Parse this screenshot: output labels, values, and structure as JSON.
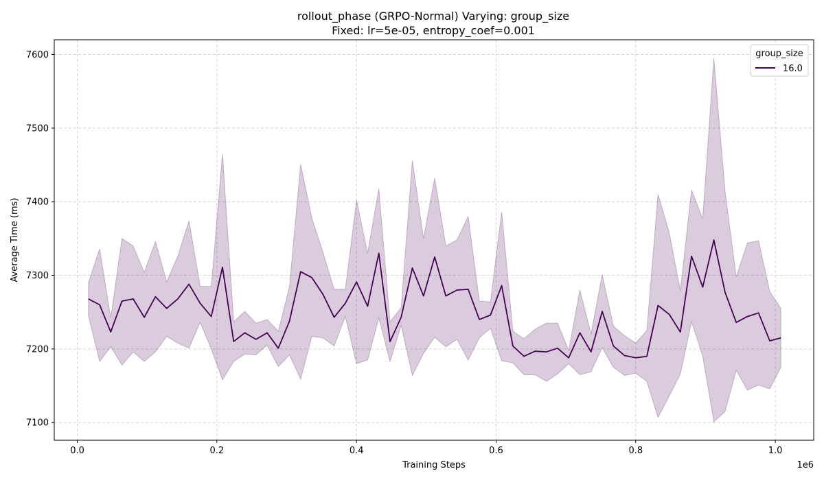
{
  "chart_data": {
    "type": "line",
    "title_line1": "rollout_phase (GRPO-Normal) Varying: group_size",
    "title_line2": "Fixed: lr=5e-05, entropy_coef=0.001",
    "xlabel": "Training Steps",
    "ylabel": "Average Time (ms)",
    "x_offset_label": "1e6",
    "xlim": [
      -0.033,
      1.055
    ],
    "ylim": [
      7076,
      7620
    ],
    "x_ticks": [
      0.0,
      0.2,
      0.4,
      0.6,
      0.8,
      1.0
    ],
    "x_tick_labels": [
      "0.0",
      "0.2",
      "0.4",
      "0.6",
      "0.8",
      "1.0"
    ],
    "y_ticks": [
      7100,
      7200,
      7300,
      7400,
      7500,
      7600
    ],
    "y_tick_labels": [
      "7100",
      "7200",
      "7300",
      "7400",
      "7500",
      "7600"
    ],
    "grid": true,
    "legend": {
      "title": "group_size",
      "location": "top-right"
    },
    "series": [
      {
        "name": "16.0",
        "color": "#440154",
        "band_color": "#440154",
        "x": [
          0.016,
          0.032,
          0.048,
          0.064,
          0.08,
          0.096,
          0.112,
          0.128,
          0.144,
          0.16,
          0.176,
          0.192,
          0.208,
          0.224,
          0.24,
          0.256,
          0.272,
          0.288,
          0.304,
          0.32,
          0.336,
          0.352,
          0.368,
          0.384,
          0.4,
          0.416,
          0.432,
          0.448,
          0.464,
          0.48,
          0.496,
          0.512,
          0.528,
          0.544,
          0.56,
          0.576,
          0.592,
          0.608,
          0.624,
          0.64,
          0.656,
          0.672,
          0.688,
          0.704,
          0.72,
          0.736,
          0.752,
          0.768,
          0.784,
          0.8,
          0.816,
          0.832,
          0.848,
          0.864,
          0.88,
          0.896,
          0.912,
          0.928,
          0.944,
          0.96,
          0.976,
          0.992,
          1.008
        ],
        "y": [
          7268,
          7260,
          7223,
          7265,
          7268,
          7243,
          7271,
          7255,
          7268,
          7288,
          7262,
          7244,
          7311,
          7210,
          7222,
          7213,
          7222,
          7201,
          7238,
          7305,
          7297,
          7274,
          7243,
          7262,
          7291,
          7258,
          7330,
          7210,
          7243,
          7310,
          7272,
          7325,
          7272,
          7280,
          7281,
          7240,
          7246,
          7286,
          7204,
          7190,
          7197,
          7196,
          7201,
          7188,
          7222,
          7196,
          7251,
          7204,
          7191,
          7188,
          7190,
          7259,
          7247,
          7223,
          7326,
          7284,
          7348,
          7277,
          7236,
          7244,
          7249,
          7211,
          7215
        ],
        "upper": [
          7290,
          7336,
          7242,
          7350,
          7340,
          7304,
          7346,
          7291,
          7326,
          7374,
          7285,
          7285,
          7465,
          7237,
          7251,
          7235,
          7240,
          7224,
          7285,
          7451,
          7378,
          7331,
          7281,
          7281,
          7402,
          7330,
          7418,
          7237,
          7256,
          7456,
          7350,
          7432,
          7340,
          7348,
          7380,
          7265,
          7264,
          7386,
          7224,
          7214,
          7227,
          7235,
          7235,
          7198,
          7280,
          7220,
          7301,
          7231,
          7218,
          7208,
          7225,
          7410,
          7358,
          7279,
          7416,
          7377,
          7595,
          7414,
          7298,
          7344,
          7347,
          7278,
          7255
        ],
        "lower": [
          7245,
          7183,
          7203,
          7178,
          7196,
          7183,
          7196,
          7217,
          7208,
          7201,
          7236,
          7200,
          7158,
          7183,
          7193,
          7192,
          7205,
          7176,
          7192,
          7159,
          7217,
          7215,
          7204,
          7244,
          7180,
          7185,
          7242,
          7183,
          7232,
          7164,
          7194,
          7216,
          7203,
          7213,
          7185,
          7215,
          7228,
          7184,
          7181,
          7165,
          7165,
          7156,
          7166,
          7180,
          7165,
          7169,
          7202,
          7175,
          7164,
          7167,
          7156,
          7107,
          7136,
          7166,
          7237,
          7190,
          7101,
          7115,
          7171,
          7144,
          7151,
          7146,
          7175
        ]
      }
    ]
  }
}
